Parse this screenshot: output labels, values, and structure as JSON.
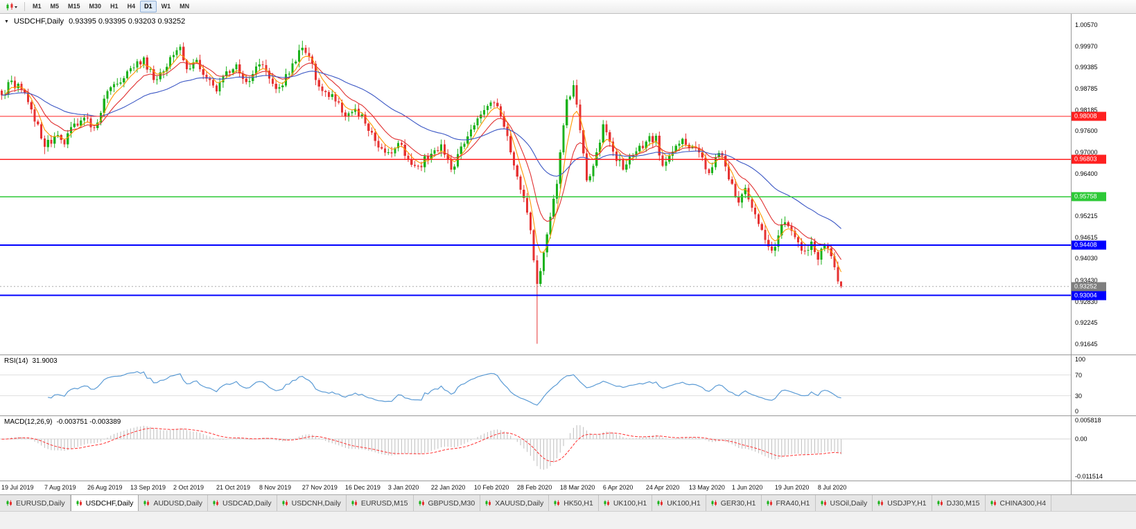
{
  "toolbar": {
    "timeframes": [
      "M1",
      "M5",
      "M15",
      "M30",
      "H1",
      "H4",
      "D1",
      "W1",
      "MN"
    ],
    "selected": "D1"
  },
  "chart": {
    "symbol_label": "USDCHF,Daily",
    "ohlc_text": "0.93395 0.93395 0.93203 0.93252"
  },
  "price_axis": {
    "labels": [
      "1.00570",
      "0.99970",
      "0.99385",
      "0.98785",
      "0.98185",
      "0.97600",
      "0.97000",
      "0.96400",
      "0.95800",
      "0.95215",
      "0.94615",
      "0.94030",
      "0.93430",
      "0.92830",
      "0.92245",
      "0.91645"
    ]
  },
  "levels": [
    {
      "value": "0.98008",
      "price": 0.98008,
      "color": "#FF2020",
      "stroke": 1.2
    },
    {
      "value": "0.96803",
      "price": 0.96803,
      "color": "#FF2020",
      "stroke": 1.2
    },
    {
      "value": "0.95758",
      "price": 0.95758,
      "color": "#2DC937",
      "stroke": 1.6
    },
    {
      "value": "0.94408",
      "price": 0.94408,
      "color": "#0000FF",
      "stroke": 2
    },
    {
      "value": "0.93004",
      "price": 0.93004,
      "color": "#0000FF",
      "stroke": 2
    }
  ],
  "current_price": {
    "value": "0.93252",
    "price": 0.93252,
    "color": "#7F7F7F"
  },
  "chart_data": {
    "type": "candlestick",
    "symbol": "USDCHF",
    "timeframe": "Daily",
    "ohlc": {
      "open": 0.93395,
      "high": 0.93395,
      "low": 0.93203,
      "close": 0.93252
    },
    "x_labels": [
      "19 Jul 2019",
      "7 Aug 2019",
      "26 Aug 2019",
      "13 Sep 2019",
      "2 Oct 2019",
      "21 Oct 2019",
      "8 Nov 2019",
      "27 Nov 2019",
      "16 Dec 2019",
      "3 Jan 2020",
      "22 Jan 2020",
      "10 Feb 2020",
      "28 Feb 2020",
      "18 Mar 2020",
      "6 Apr 2020",
      "24 Apr 2020",
      "13 May 2020",
      "1 Jun 2020",
      "19 Jun 2020",
      "8 Jul 2020"
    ],
    "candles_per_label": 13,
    "candle_count": 255,
    "y_range": [
      0.9135,
      1.0087
    ],
    "anchors": [
      [
        0,
        0.986
      ],
      [
        3,
        0.99
      ],
      [
        6,
        0.9875
      ],
      [
        9,
        0.982
      ],
      [
        13,
        0.9715
      ],
      [
        16,
        0.9745
      ],
      [
        19,
        0.9722
      ],
      [
        22,
        0.978
      ],
      [
        26,
        0.9795
      ],
      [
        28,
        0.9768
      ],
      [
        31,
        0.985
      ],
      [
        35,
        0.9892
      ],
      [
        39,
        0.9935
      ],
      [
        43,
        0.9965
      ],
      [
        46,
        0.9902
      ],
      [
        49,
        0.9926
      ],
      [
        52,
        0.9972
      ],
      [
        54,
        0.9995
      ],
      [
        56,
        0.9932
      ],
      [
        59,
        0.9958
      ],
      [
        62,
        0.9906
      ],
      [
        65,
        0.987
      ],
      [
        68,
        0.9926
      ],
      [
        71,
        0.9946
      ],
      [
        74,
        0.9896
      ],
      [
        78,
        0.9946
      ],
      [
        81,
        0.9906
      ],
      [
        84,
        0.9882
      ],
      [
        87,
        0.992
      ],
      [
        91,
        0.9992
      ],
      [
        93,
        0.9968
      ],
      [
        95,
        0.9902
      ],
      [
        98,
        0.9868
      ],
      [
        101,
        0.9842
      ],
      [
        104,
        0.98
      ],
      [
        107,
        0.9822
      ],
      [
        110,
        0.978
      ],
      [
        113,
        0.9732
      ],
      [
        117,
        0.97
      ],
      [
        120,
        0.9726
      ],
      [
        123,
        0.9682
      ],
      [
        126,
        0.9662
      ],
      [
        130,
        0.9696
      ],
      [
        133,
        0.9722
      ],
      [
        136,
        0.9652
      ],
      [
        139,
        0.9716
      ],
      [
        143,
        0.9775
      ],
      [
        146,
        0.9818
      ],
      [
        149,
        0.9838
      ],
      [
        152,
        0.9772
      ],
      [
        154,
        0.97
      ],
      [
        156,
        0.9632
      ],
      [
        158,
        0.9572
      ],
      [
        160,
        0.9482
      ],
      [
        162,
        0.9332
      ],
      [
        164,
        0.942
      ],
      [
        166,
        0.952
      ],
      [
        168,
        0.9612
      ],
      [
        169,
        0.97
      ],
      [
        171,
        0.9848
      ],
      [
        173,
        0.9888
      ],
      [
        175,
        0.9762
      ],
      [
        177,
        0.9622
      ],
      [
        179,
        0.9662
      ],
      [
        182,
        0.9778
      ],
      [
        185,
        0.9702
      ],
      [
        188,
        0.9652
      ],
      [
        191,
        0.9692
      ],
      [
        195,
        0.973
      ],
      [
        198,
        0.9746
      ],
      [
        200,
        0.9662
      ],
      [
        203,
        0.9702
      ],
      [
        206,
        0.9738
      ],
      [
        208,
        0.9712
      ],
      [
        211,
        0.97
      ],
      [
        214,
        0.9642
      ],
      [
        217,
        0.9698
      ],
      [
        219,
        0.966
      ],
      [
        221,
        0.9612
      ],
      [
        223,
        0.956
      ],
      [
        225,
        0.96
      ],
      [
        227,
        0.9545
      ],
      [
        229,
        0.95
      ],
      [
        231,
        0.9455
      ],
      [
        233,
        0.9425
      ],
      [
        235,
        0.9468
      ],
      [
        237,
        0.9505
      ],
      [
        239,
        0.948
      ],
      [
        241,
        0.9448
      ],
      [
        243,
        0.9425
      ],
      [
        245,
        0.945
      ],
      [
        247,
        0.94
      ],
      [
        249,
        0.944
      ],
      [
        251,
        0.941
      ],
      [
        253,
        0.93395
      ],
      [
        254,
        0.93252
      ]
    ],
    "low_overrides": {
      "13": 0.9695,
      "162": 0.9165,
      "254": 0.93203
    },
    "high_overrides": {
      "54": 1.0002,
      "91": 1.0012,
      "173": 0.9901,
      "254": 0.93395
    },
    "colors": {
      "up": "#1CB21C",
      "down": "#E63232"
    },
    "moving_averages": [
      {
        "name": "ma-fast",
        "period": 5,
        "color": "#FF9800"
      },
      {
        "name": "ma-mid",
        "period": 12,
        "color": "#E03030"
      },
      {
        "name": "ma-slow",
        "period": 40,
        "color": "#3A56C4"
      }
    ]
  },
  "rsi": {
    "title": "RSI(14)",
    "value": "31.9003",
    "period": 14,
    "axis_labels": [
      "100",
      "70",
      "30",
      "0"
    ],
    "level_lines": [
      70,
      30
    ],
    "range": [
      0,
      100
    ],
    "line_color": "#5B9BD5"
  },
  "macd": {
    "title": "MACD(12,26,9)",
    "values": "-0.003751 -0.003389",
    "fast": 12,
    "slow": 26,
    "signal": 9,
    "axis_labels": [
      "0.005818",
      "0.00",
      "-0.011514"
    ],
    "scale_max": 0.005818,
    "scale_min": -0.011514,
    "histogram_color": "#BDBDBD",
    "signal_color": "#FF3030"
  },
  "tabs": [
    {
      "label": "EURUSD,Daily",
      "active": false
    },
    {
      "label": "USDCHF,Daily",
      "active": true
    },
    {
      "label": "AUDUSD,Daily",
      "active": false
    },
    {
      "label": "USDCAD,Daily",
      "active": false
    },
    {
      "label": "USDCNH,Daily",
      "active": false
    },
    {
      "label": "EURUSD,M15",
      "active": false
    },
    {
      "label": "GBPUSD,M30",
      "active": false
    },
    {
      "label": "XAUUSD,Daily",
      "active": false
    },
    {
      "label": "HK50,H1",
      "active": false
    },
    {
      "label": "UK100,H1",
      "active": false
    },
    {
      "label": "UK100,H1",
      "active": false
    },
    {
      "label": "GER30,H1",
      "active": false
    },
    {
      "label": "FRA40,H1",
      "active": false
    },
    {
      "label": "USOil,Daily",
      "active": false
    },
    {
      "label": "USDJPY,H1",
      "active": false
    },
    {
      "label": "DJ30,M15",
      "active": false
    },
    {
      "label": "CHINA300,H4",
      "active": false
    }
  ]
}
